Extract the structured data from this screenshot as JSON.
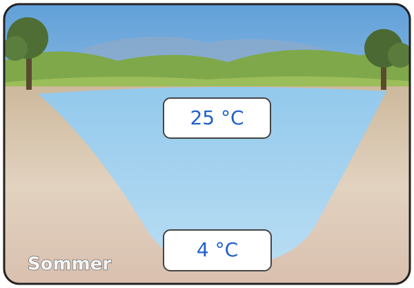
{
  "labels": {
    "surface_temperature": "25 °C",
    "bottom_temperature": "4 °C",
    "season": "Sommer"
  }
}
